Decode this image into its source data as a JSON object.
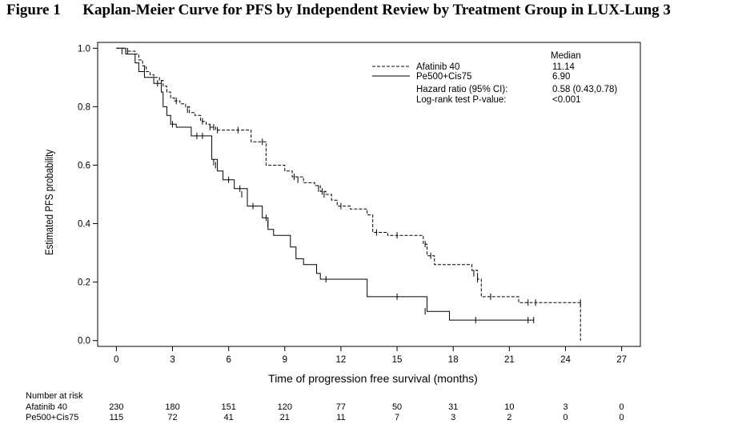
{
  "figure": {
    "number": "Figure 1",
    "title": "Kaplan-Meier Curve for PFS by Independent Review by Treatment Group in LUX-Lung 3"
  },
  "chart_data": {
    "type": "line",
    "title": "Kaplan-Meier Curve for PFS by Independent Review by Treatment Group in LUX-Lung 3",
    "xlabel": "Time of progression free survival (months)",
    "ylabel": "Estimated PFS probability",
    "xlim": [
      -1,
      28
    ],
    "ylim": [
      -0.02,
      1.02
    ],
    "x_ticks": [
      0,
      3,
      6,
      9,
      12,
      15,
      18,
      21,
      24,
      27
    ],
    "y_ticks": [
      0.0,
      0.2,
      0.4,
      0.6,
      0.8,
      1.0
    ],
    "y_tick_labels": [
      "0.0",
      "0.2",
      "0.4",
      "0.6",
      "0.8",
      "1.0"
    ],
    "step": true,
    "series": [
      {
        "name": "Afatinib 40",
        "style": "dashed",
        "color": "#000000",
        "median": "11.14",
        "x": [
          0,
          0.5,
          1.0,
          1.2,
          1.4,
          1.6,
          1.8,
          2.0,
          2.3,
          2.5,
          2.7,
          2.9,
          3.1,
          3.4,
          3.7,
          3.9,
          4.2,
          4.5,
          4.8,
          5.0,
          5.3,
          6.0,
          7.2,
          8.0,
          9.0,
          9.4,
          10.0,
          10.6,
          10.9,
          11.2,
          11.5,
          11.8,
          12.5,
          13.4,
          13.7,
          14.5,
          15.0,
          16.4,
          16.6,
          17.0,
          19.0,
          19.3,
          19.5,
          21.5,
          24.8
        ],
        "y": [
          1.0,
          0.99,
          0.98,
          0.96,
          0.94,
          0.92,
          0.91,
          0.9,
          0.89,
          0.87,
          0.85,
          0.83,
          0.82,
          0.81,
          0.8,
          0.78,
          0.77,
          0.75,
          0.74,
          0.73,
          0.72,
          0.72,
          0.68,
          0.6,
          0.58,
          0.56,
          0.54,
          0.53,
          0.51,
          0.5,
          0.48,
          0.46,
          0.45,
          0.43,
          0.37,
          0.36,
          0.36,
          0.33,
          0.29,
          0.26,
          0.24,
          0.21,
          0.15,
          0.13,
          0.0
        ],
        "censored": [
          [
            0.6,
            0.99
          ],
          [
            1.5,
            0.93
          ],
          [
            2.4,
            0.88
          ],
          [
            3.2,
            0.82
          ],
          [
            3.8,
            0.79
          ],
          [
            4.6,
            0.75
          ],
          [
            5.0,
            0.73
          ],
          [
            5.2,
            0.73
          ],
          [
            5.4,
            0.72
          ],
          [
            6.5,
            0.72
          ],
          [
            7.8,
            0.68
          ],
          [
            9.5,
            0.56
          ],
          [
            9.7,
            0.55
          ],
          [
            10.8,
            0.52
          ],
          [
            11.0,
            0.51
          ],
          [
            11.1,
            0.5
          ],
          [
            12.0,
            0.46
          ],
          [
            13.9,
            0.37
          ],
          [
            15.0,
            0.36
          ],
          [
            16.5,
            0.33
          ],
          [
            16.8,
            0.29
          ],
          [
            19.1,
            0.23
          ],
          [
            19.3,
            0.21
          ],
          [
            20.0,
            0.15
          ],
          [
            22.0,
            0.13
          ],
          [
            22.4,
            0.13
          ],
          [
            24.8,
            0.13
          ]
        ]
      },
      {
        "name": "Pe500+Cis75",
        "style": "solid",
        "color": "#000000",
        "median": "6.90",
        "x": [
          0,
          0.5,
          1.0,
          1.2,
          1.5,
          2.0,
          2.4,
          2.5,
          2.7,
          2.9,
          3.2,
          4.0,
          5.1,
          5.4,
          5.7,
          6.3,
          7.0,
          7.8,
          8.1,
          8.4,
          9.3,
          9.6,
          10.0,
          10.7,
          10.9,
          13.4,
          16.6,
          17.8
        ],
        "y": [
          1.0,
          0.98,
          0.95,
          0.92,
          0.9,
          0.88,
          0.85,
          0.8,
          0.77,
          0.74,
          0.73,
          0.7,
          0.62,
          0.58,
          0.55,
          0.52,
          0.46,
          0.42,
          0.38,
          0.36,
          0.32,
          0.28,
          0.26,
          0.23,
          0.21,
          0.15,
          0.1,
          0.07
        ],
        "censored": [
          [
            0.3,
            0.99
          ],
          [
            2.2,
            0.88
          ],
          [
            3.0,
            0.74
          ],
          [
            4.3,
            0.7
          ],
          [
            4.6,
            0.7
          ],
          [
            5.2,
            0.61
          ],
          [
            5.3,
            0.6
          ],
          [
            6.0,
            0.55
          ],
          [
            6.6,
            0.52
          ],
          [
            6.7,
            0.5
          ],
          [
            7.3,
            0.46
          ],
          [
            8.0,
            0.42
          ],
          [
            8.1,
            0.4
          ],
          [
            11.2,
            0.21
          ],
          [
            15.0,
            0.15
          ],
          [
            16.5,
            0.1
          ],
          [
            19.2,
            0.07
          ],
          [
            22.0,
            0.07
          ],
          [
            22.3,
            0.07
          ]
        ]
      }
    ],
    "legend": {
      "position": "top-right",
      "median_header": "Median",
      "hazard_label": "Hazard ratio (95% CI):",
      "hazard_value": "0.58 (0.43,0.78)",
      "pvalue_label": "Log-rank test P-value:",
      "pvalue_value": "<0.001"
    },
    "risk_table": {
      "header": "Number at risk",
      "rows": [
        {
          "label": "Afatinib 40",
          "values": [
            "230",
            "180",
            "151",
            "120",
            "77",
            "50",
            "31",
            "10",
            "3",
            "0"
          ]
        },
        {
          "label": "Pe500+Cis75",
          "values": [
            "115",
            "72",
            "41",
            "21",
            "11",
            "7",
            "3",
            "2",
            "0",
            "0"
          ]
        }
      ]
    }
  }
}
